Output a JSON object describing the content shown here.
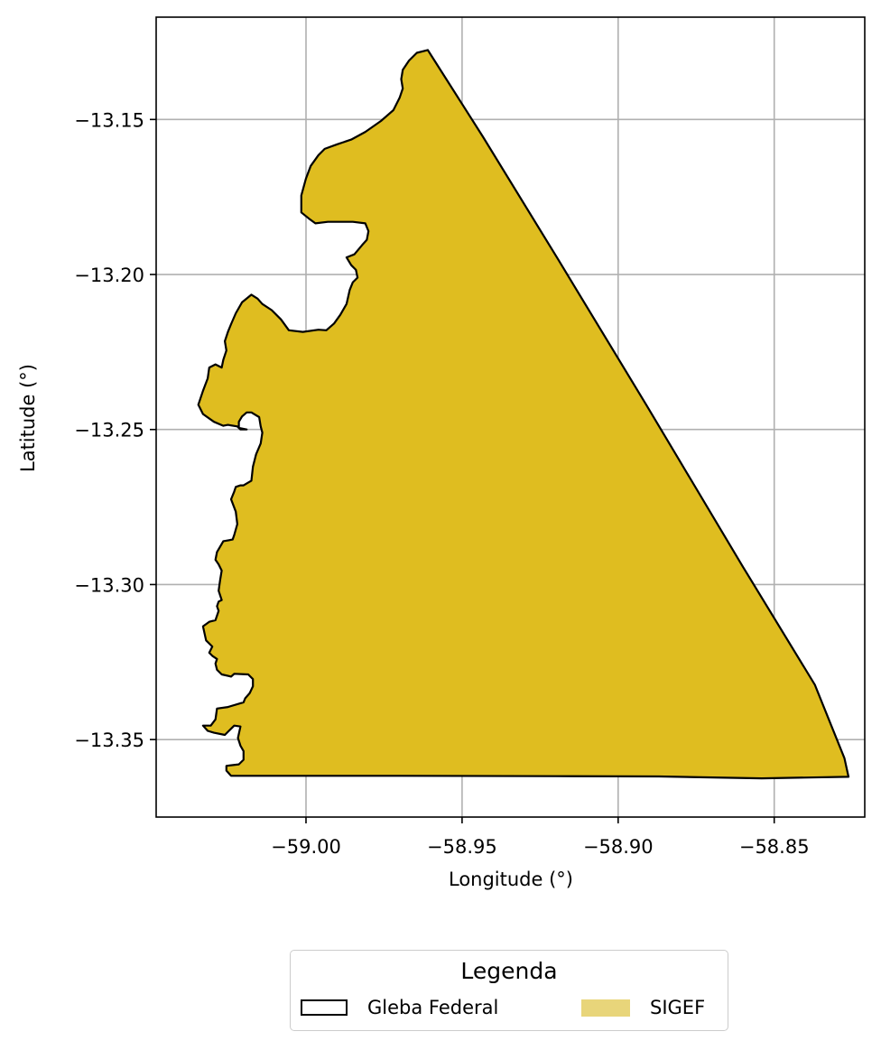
{
  "map": {
    "xlabel": "Longitude (°)",
    "ylabel": "Latitude (°)",
    "x_ticks": [
      "−59.00",
      "−58.95",
      "−58.90",
      "−58.85"
    ],
    "y_ticks": [
      "−13.15",
      "−13.20",
      "−13.25",
      "−13.30",
      "−13.35"
    ],
    "grid": true
  },
  "layers": [
    {
      "name": "Gleba Federal",
      "style": "outline",
      "stroke": "#000000"
    },
    {
      "name": "SIGEF",
      "style": "fill",
      "fill": "#dfbd20",
      "legend_fill": "#e8d57a"
    }
  ],
  "legend": {
    "title": "Legenda",
    "placement": "bottom-center",
    "items": [
      "Gleba Federal",
      "SIGEF"
    ]
  },
  "chart_data": {
    "type": "map",
    "title": "",
    "xlabel": "Longitude (°)",
    "ylabel": "Latitude (°)",
    "xlim": [
      -59.048,
      -58.821
    ],
    "ylim": [
      -13.375,
      -13.117
    ],
    "xticks": [
      -59.0,
      -58.95,
      -58.9,
      -58.85
    ],
    "yticks": [
      -13.15,
      -13.2,
      -13.25,
      -13.3,
      -13.35
    ],
    "grid": true,
    "legend_position": "bottom-center",
    "series": [
      {
        "name": "SIGEF",
        "outline_layer": "Gleba Federal",
        "polygon_lonlat": [
          [
            -58.961,
            -13.1276
          ],
          [
            -58.9433,
            -13.1556
          ],
          [
            -58.919,
            -13.1955
          ],
          [
            -58.891,
            -13.242
          ],
          [
            -58.86,
            -13.2943
          ],
          [
            -58.837,
            -13.3323
          ],
          [
            -58.8275,
            -13.356
          ],
          [
            -58.8262,
            -13.362
          ],
          [
            -58.854,
            -13.3625
          ],
          [
            -58.887,
            -13.3619
          ],
          [
            -58.92,
            -13.3618
          ],
          [
            -58.97,
            -13.3617
          ],
          [
            -59.024,
            -13.3617
          ],
          [
            -59.0255,
            -13.36
          ],
          [
            -59.0255,
            -13.3585
          ],
          [
            -59.0215,
            -13.358
          ],
          [
            -59.02,
            -13.3565
          ],
          [
            -59.02,
            -13.3537
          ],
          [
            -59.021,
            -13.352
          ],
          [
            -59.0218,
            -13.3495
          ],
          [
            -59.021,
            -13.3458
          ],
          [
            -59.023,
            -13.3455
          ],
          [
            -59.0245,
            -13.347
          ],
          [
            -59.026,
            -13.3485
          ],
          [
            -59.0295,
            -13.3478
          ],
          [
            -59.0315,
            -13.3472
          ],
          [
            -59.033,
            -13.3455
          ],
          [
            -59.0305,
            -13.3455
          ],
          [
            -59.029,
            -13.3435
          ],
          [
            -59.0285,
            -13.34
          ],
          [
            -59.025,
            -13.3395
          ],
          [
            -59.02,
            -13.338
          ],
          [
            -59.0195,
            -13.3367
          ],
          [
            -59.018,
            -13.335
          ],
          [
            -59.017,
            -13.3328
          ],
          [
            -59.017,
            -13.3305
          ],
          [
            -59.0185,
            -13.329
          ],
          [
            -59.023,
            -13.3288
          ],
          [
            -59.024,
            -13.3297
          ],
          [
            -59.027,
            -13.329
          ],
          [
            -59.0285,
            -13.3275
          ],
          [
            -59.029,
            -13.3255
          ],
          [
            -59.0285,
            -13.324
          ],
          [
            -59.03,
            -13.323
          ],
          [
            -59.031,
            -13.322
          ],
          [
            -59.03,
            -13.32
          ],
          [
            -59.032,
            -13.318
          ],
          [
            -59.033,
            -13.3135
          ],
          [
            -59.031,
            -13.312
          ],
          [
            -59.029,
            -13.3115
          ],
          [
            -59.028,
            -13.3085
          ],
          [
            -59.0285,
            -13.307
          ],
          [
            -59.028,
            -13.3055
          ],
          [
            -59.027,
            -13.305
          ],
          [
            -59.028,
            -13.302
          ],
          [
            -59.0275,
            -13.2985
          ],
          [
            -59.027,
            -13.2955
          ],
          [
            -59.028,
            -13.2935
          ],
          [
            -59.029,
            -13.292
          ],
          [
            -59.0285,
            -13.2895
          ],
          [
            -59.0265,
            -13.286
          ],
          [
            -59.0235,
            -13.2855
          ],
          [
            -59.023,
            -13.284
          ],
          [
            -59.022,
            -13.2805
          ],
          [
            -59.0225,
            -13.2765
          ],
          [
            -59.024,
            -13.2725
          ],
          [
            -59.023,
            -13.27
          ],
          [
            -59.0225,
            -13.2685
          ],
          [
            -59.021,
            -13.268
          ],
          [
            -59.02,
            -13.268
          ],
          [
            -59.0175,
            -13.2665
          ],
          [
            -59.017,
            -13.262
          ],
          [
            -59.016,
            -13.258
          ],
          [
            -59.0145,
            -13.2545
          ],
          [
            -59.014,
            -13.251
          ],
          [
            -59.0145,
            -13.249
          ],
          [
            -59.015,
            -13.246
          ],
          [
            -59.0175,
            -13.2445
          ],
          [
            -59.019,
            -13.2445
          ],
          [
            -59.0205,
            -13.2458
          ],
          [
            -59.0215,
            -13.2475
          ],
          [
            -59.0215,
            -13.2495
          ],
          [
            -59.019,
            -13.25
          ],
          [
            -59.021,
            -13.25
          ],
          [
            -59.022,
            -13.249
          ],
          [
            -59.025,
            -13.2485
          ],
          [
            -59.0265,
            -13.2488
          ],
          [
            -59.0295,
            -13.2475
          ],
          [
            -59.033,
            -13.245
          ],
          [
            -59.0345,
            -13.242
          ],
          [
            -59.033,
            -13.2375
          ],
          [
            -59.0315,
            -13.2335
          ],
          [
            -59.031,
            -13.23
          ],
          [
            -59.029,
            -13.229
          ],
          [
            -59.027,
            -13.23
          ],
          [
            -59.0265,
            -13.2275
          ],
          [
            -59.0255,
            -13.2245
          ],
          [
            -59.026,
            -13.2215
          ],
          [
            -59.025,
            -13.2185
          ],
          [
            -59.024,
            -13.216
          ],
          [
            -59.0225,
            -13.2125
          ],
          [
            -59.0205,
            -13.209
          ],
          [
            -59.0175,
            -13.2065
          ],
          [
            -59.0155,
            -13.2078
          ],
          [
            -59.014,
            -13.2095
          ],
          [
            -59.011,
            -13.2115
          ],
          [
            -59.008,
            -13.2145
          ],
          [
            -59.0055,
            -13.218
          ],
          [
            -59.001,
            -13.2185
          ],
          [
            -58.996,
            -13.2178
          ],
          [
            -58.9935,
            -13.218
          ],
          [
            -58.991,
            -13.2158
          ],
          [
            -58.989,
            -13.213
          ],
          [
            -58.987,
            -13.2095
          ],
          [
            -58.986,
            -13.205
          ],
          [
            -58.985,
            -13.2025
          ],
          [
            -58.9835,
            -13.201
          ],
          [
            -58.984,
            -13.1985
          ],
          [
            -58.9855,
            -13.197
          ],
          [
            -58.987,
            -13.1945
          ],
          [
            -58.9845,
            -13.1935
          ],
          [
            -58.982,
            -13.1905
          ],
          [
            -58.9805,
            -13.1888
          ],
          [
            -58.98,
            -13.186
          ],
          [
            -58.981,
            -13.1835
          ],
          [
            -58.985,
            -13.183
          ],
          [
            -58.993,
            -13.183
          ],
          [
            -58.997,
            -13.1835
          ],
          [
            -58.999,
            -13.182
          ],
          [
            -59.0015,
            -13.18
          ],
          [
            -59.0015,
            -13.1745
          ],
          [
            -59.0,
            -13.169
          ],
          [
            -58.9985,
            -13.165
          ],
          [
            -58.996,
            -13.1615
          ],
          [
            -58.994,
            -13.1595
          ],
          [
            -58.99,
            -13.158
          ],
          [
            -58.9855,
            -13.1565
          ],
          [
            -58.981,
            -13.154
          ],
          [
            -58.976,
            -13.1505
          ],
          [
            -58.972,
            -13.147
          ],
          [
            -58.97,
            -13.143
          ],
          [
            -58.969,
            -13.14
          ],
          [
            -58.9695,
            -13.137
          ],
          [
            -58.969,
            -13.134
          ],
          [
            -58.967,
            -13.131
          ],
          [
            -58.9645,
            -13.1285
          ]
        ]
      }
    ]
  }
}
